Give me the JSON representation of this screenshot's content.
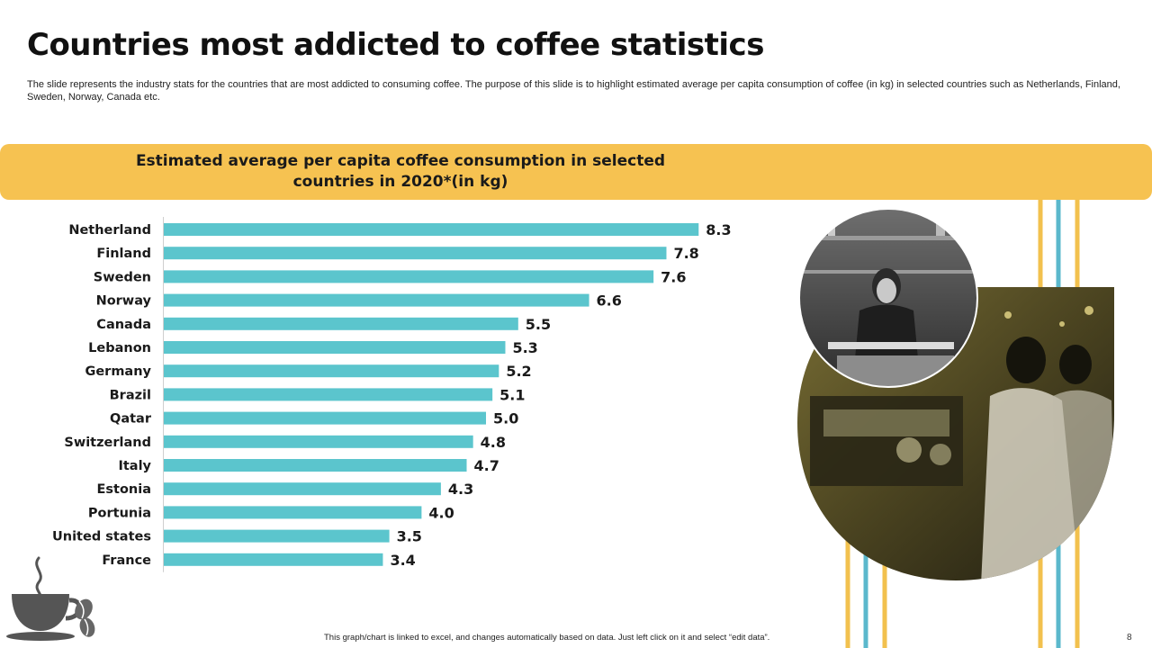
{
  "slide": {
    "title": "Countries most addicted to coffee statistics",
    "subtitle": "The slide represents the industry stats for the countries that are most addicted to consuming coffee. The purpose of this slide is to highlight estimated average per capita consumption of coffee (in kg) in selected countries such as Netherlands, Finland, Sweden, Norway, Canada etc.",
    "banner_line1": "Estimated average per capita coffee consumption in selected",
    "banner_line2": "countries in 2020*(in kg)",
    "footnote": "This graph/chart is linked to excel, and changes automatically based on data. Just left click on it and select “edit data”.",
    "page_number": "8"
  },
  "colors": {
    "accent": "#f6c251",
    "bar": "#5bc5cd",
    "stripe_blue": "#5bb8cc",
    "stripe_yellow": "#f2c14e"
  },
  "icons": [
    "coffee-cup-icon",
    "coffee-beans-icon"
  ],
  "chart_data": {
    "type": "bar",
    "orientation": "horizontal",
    "title": "Estimated average per capita coffee consumption in selected countries in 2020*(in kg)",
    "categories": [
      "Netherland",
      "Finland",
      "Sweden",
      "Norway",
      "Canada",
      "Lebanon",
      "Germany",
      "Brazil",
      "Qatar",
      "Switzerland",
      "Italy",
      "Estonia",
      "Portunia",
      "United states",
      "France"
    ],
    "values": [
      8.3,
      7.8,
      7.6,
      6.6,
      5.5,
      5.3,
      5.2,
      5.1,
      5.0,
      4.8,
      4.7,
      4.3,
      4.0,
      3.5,
      3.4
    ],
    "value_labels": [
      "8.3",
      "7.8",
      "7.6",
      "6.6",
      "5.5",
      "5.3",
      "5.2",
      "5.1",
      "5.0",
      "4.8",
      "4.7",
      "4.3",
      "4.0",
      "3.5",
      "3.4"
    ],
    "xlim": [
      0,
      9
    ],
    "grid": false,
    "legend": "none"
  }
}
